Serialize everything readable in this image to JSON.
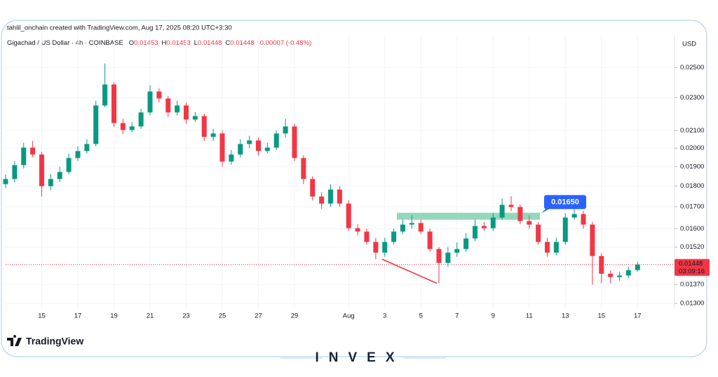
{
  "chart_data": {
    "type": "candlestick",
    "title": "tahlil_onchain created with TradingView.com, Aug 17, 2025 08:20 UTC+3:30",
    "legend": {
      "symbol": "Gigachad / US Dollar · 4h · COINBASE",
      "ohlc": [
        {
          "label": "O",
          "value": 0.01453
        },
        {
          "label": "H",
          "value": 0.01453
        },
        {
          "label": "L",
          "value": 0.01448
        },
        {
          "label": "C",
          "value": 0.01448
        }
      ],
      "change": "-0.00007 (-0.48%)"
    },
    "currency": "USD",
    "log_scale": true,
    "grid": true,
    "up_color": "#089981",
    "down_color": "#f23645",
    "categories": [
      null,
      null,
      null,
      null,
      "15",
      null,
      null,
      null,
      "17",
      null,
      null,
      null,
      "19",
      null,
      null,
      null,
      "21",
      null,
      null,
      null,
      "23",
      null,
      null,
      null,
      "25",
      null,
      null,
      null,
      "27",
      null,
      null,
      null,
      "29",
      null,
      null,
      null,
      null,
      null,
      "Aug",
      null,
      null,
      null,
      "3",
      null,
      null,
      null,
      "5",
      null,
      null,
      null,
      "7",
      null,
      null,
      null,
      "9",
      null,
      null,
      null,
      "11",
      null,
      null,
      null,
      "13",
      null,
      null,
      null,
      "15",
      null,
      null,
      null,
      "17"
    ],
    "open": [
      0.0181,
      0.01836,
      0.01908,
      0.02003,
      0.01965,
      0.018,
      0.01836,
      0.01872,
      0.01946,
      0.01984,
      0.02023,
      0.02251,
      0.02386,
      0.02144,
      0.02103,
      0.02124,
      0.02208,
      0.0234,
      0.02295,
      0.02208,
      0.02251,
      0.02165,
      0.02186,
      0.02063,
      0.02083,
      0.01927,
      0.01965,
      0.02023,
      0.02043,
      0.01984,
      0.02003,
      0.02083,
      0.02124,
      0.01946,
      0.01836,
      0.01749,
      0.01715,
      0.01783,
      0.01715,
      0.01602,
      0.01587,
      0.01542,
      0.01497,
      0.01542,
      0.01587,
      0.01618,
      0.01625,
      0.01587,
      0.01512,
      0.01455,
      0.01497,
      0.01512,
      0.01557,
      0.01612,
      0.01602,
      0.0165,
      0.01709,
      0.01699,
      0.01634,
      0.01618,
      0.01542,
      0.01497,
      0.01542,
      0.0165,
      0.01666,
      0.01618,
      0.01483,
      0.01412,
      0.01399,
      0.01405,
      0.01426
    ],
    "high": [
      0.0186,
      0.0193,
      0.0203,
      0.0204,
      0.0198,
      0.0186,
      0.019,
      0.0197,
      0.0201,
      0.0205,
      0.0228,
      0.02529,
      0.024,
      0.0217,
      0.0215,
      0.0223,
      0.0238,
      0.0236,
      0.0231,
      0.0228,
      0.0227,
      0.0221,
      0.022,
      0.0211,
      0.021,
      0.0199,
      0.0205,
      0.0207,
      0.0206,
      0.0203,
      0.021,
      0.0217,
      0.0214,
      0.0196,
      0.0185,
      0.0177,
      0.0181,
      0.018,
      0.0173,
      0.0162,
      0.016,
      0.0156,
      0.0156,
      0.016,
      0.0164,
      0.0166,
      0.0164,
      0.016,
      0.0152,
      0.0152,
      0.0154,
      0.0158,
      0.0164,
      0.0163,
      0.0167,
      0.0174,
      0.0175,
      0.0171,
      0.0166,
      0.0163,
      0.0156,
      0.0156,
      0.0167,
      0.017,
      0.0168,
      0.0163,
      0.01495,
      0.01425,
      0.0142,
      0.0144,
      0.0146
    ],
    "low": [
      0.0179,
      0.0182,
      0.0189,
      0.0195,
      0.01749,
      0.0178,
      0.0182,
      0.0186,
      0.0193,
      0.0197,
      0.0201,
      0.0224,
      0.0212,
      0.0208,
      0.0209,
      0.0211,
      0.0219,
      0.0227,
      0.0218,
      0.0219,
      0.0214,
      0.0215,
      0.0204,
      0.0204,
      0.019,
      0.0191,
      0.0195,
      0.02,
      0.0196,
      0.0197,
      0.0199,
      0.0206,
      0.0193,
      0.0181,
      0.0173,
      0.0169,
      0.017,
      0.017,
      0.0159,
      0.0157,
      0.0153,
      0.0147,
      0.0148,
      0.0153,
      0.01575,
      0.016,
      0.01575,
      0.015,
      0.01375,
      0.0144,
      0.0148,
      0.015,
      0.01545,
      0.0159,
      0.0159,
      0.0164,
      0.0168,
      0.0162,
      0.016,
      0.0153,
      0.0148,
      0.01485,
      0.0153,
      0.0164,
      0.016,
      0.0137,
      0.01375,
      0.01375,
      0.01385,
      0.01395,
      0.0142
    ],
    "close": [
      0.01836,
      0.01908,
      0.02003,
      0.01965,
      0.018,
      0.01836,
      0.01872,
      0.01946,
      0.01984,
      0.02023,
      0.02251,
      0.02386,
      0.02144,
      0.02103,
      0.02124,
      0.02208,
      0.0234,
      0.02295,
      0.02208,
      0.02251,
      0.02165,
      0.02186,
      0.02063,
      0.02083,
      0.01927,
      0.01965,
      0.02023,
      0.02043,
      0.01984,
      0.02003,
      0.02083,
      0.02124,
      0.01946,
      0.01836,
      0.01749,
      0.01715,
      0.01783,
      0.01715,
      0.01602,
      0.01587,
      0.01542,
      0.01497,
      0.01542,
      0.01587,
      0.01618,
      0.01625,
      0.01587,
      0.01512,
      0.01455,
      0.01497,
      0.01512,
      0.01557,
      0.01612,
      0.01602,
      0.0165,
      0.01709,
      0.01699,
      0.01634,
      0.01618,
      0.01542,
      0.01497,
      0.01542,
      0.0165,
      0.01666,
      0.01618,
      0.01483,
      0.01412,
      0.01399,
      0.01405,
      0.01426,
      0.01448
    ],
    "ylim": [
      0.01246,
      0.0271
    ],
    "yticks": [
      {
        "value": 0.013,
        "label": "0.01300"
      },
      {
        "value": 0.0137,
        "label": "0.01370"
      },
      {
        "value": 0.0152,
        "label": "0.01520"
      },
      {
        "value": 0.016,
        "label": "0.01600"
      },
      {
        "value": 0.017,
        "label": "0.01700"
      },
      {
        "value": 0.018,
        "label": "0.01800"
      },
      {
        "value": 0.019,
        "label": "0.01900"
      },
      {
        "value": 0.02,
        "label": "0.02000"
      },
      {
        "value": 0.021,
        "label": "0.02100"
      },
      {
        "value": 0.023,
        "label": "0.02300"
      },
      {
        "value": 0.025,
        "label": "0.02500"
      }
    ],
    "price_line": {
      "value": 0.01448,
      "countdown": "03:09:16",
      "color": "#f23645"
    },
    "zone": {
      "low": 0.0164,
      "high": 0.01672,
      "color": "#7fd1b0"
    },
    "trendline": {
      "start": 0.0147,
      "end": 0.01375,
      "color": "#f23645"
    },
    "callout": {
      "value": 0.0165,
      "label": "0.01650",
      "color": "#2962ff"
    },
    "brand": "TradingView",
    "watermark": "INVEX"
  }
}
